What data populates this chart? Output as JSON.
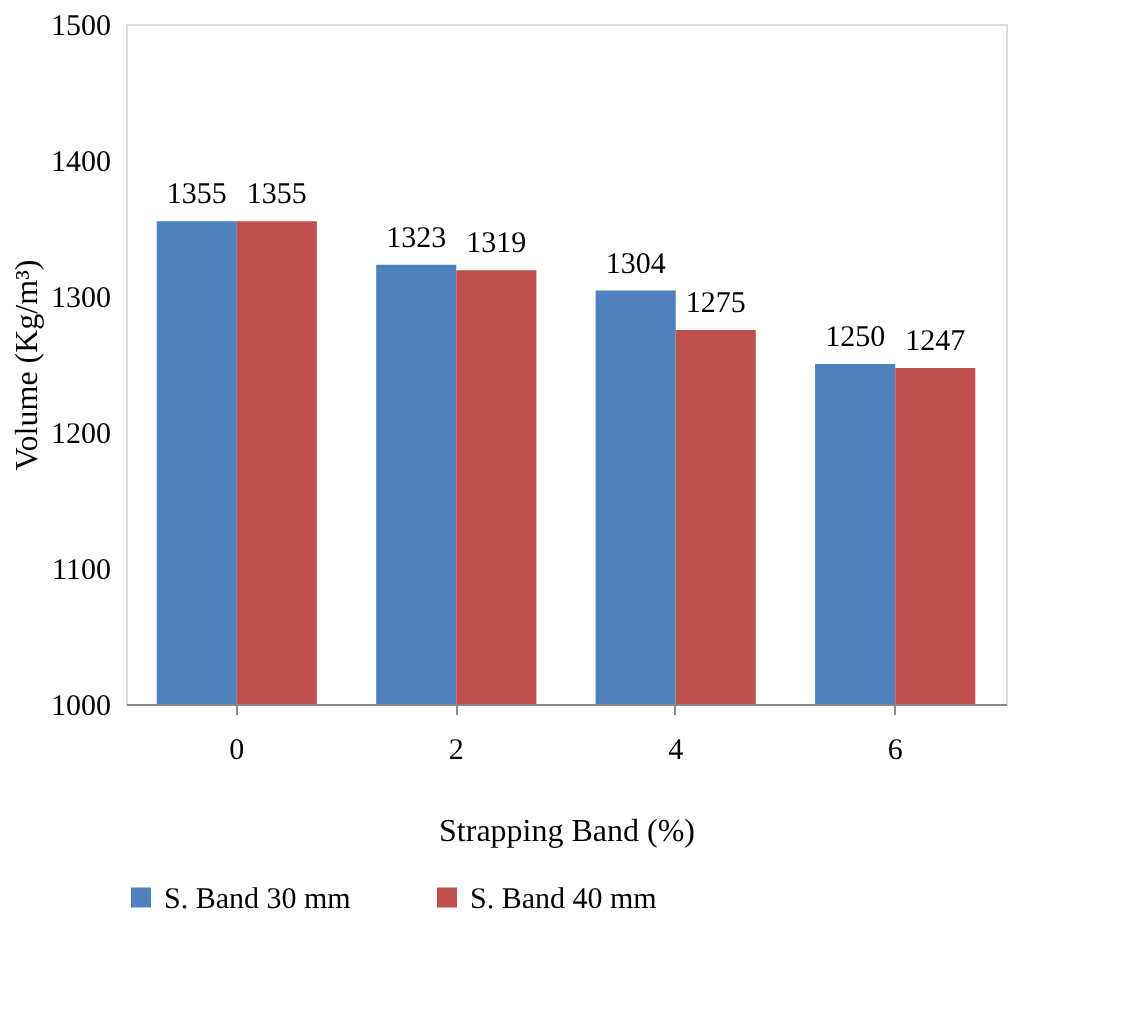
{
  "chart_data": {
    "type": "bar",
    "xlabel": "Strapping Band (%)",
    "ylabel": "Volume (Kg/m³)",
    "categories": [
      "0",
      "2",
      "4",
      "6"
    ],
    "series": [
      {
        "name": "S. Band 30 mm",
        "color": "#4f81bd",
        "values": [
          1355,
          1323,
          1304,
          1250
        ]
      },
      {
        "name": "S. Band 40 mm",
        "color": "#c0504d",
        "values": [
          1355,
          1319,
          1275,
          1247
        ]
      }
    ],
    "ylim": [
      1000,
      1500
    ],
    "yticks": [
      1000,
      1100,
      1200,
      1300,
      1400,
      1500
    ],
    "grid": false,
    "legend": "bottom",
    "data_labels": true
  }
}
